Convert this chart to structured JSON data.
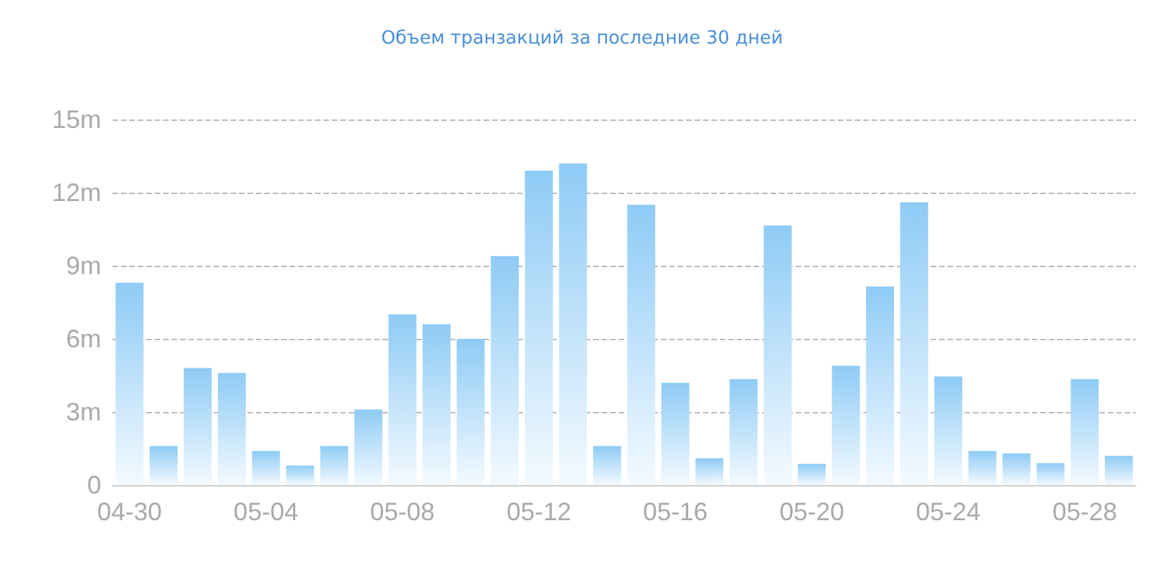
{
  "chart_data": {
    "type": "bar",
    "title": "Объем транзакций за последние 30 дней",
    "categories": [
      "04-30",
      null,
      null,
      null,
      "05-04",
      null,
      null,
      null,
      "05-08",
      null,
      null,
      null,
      "05-12",
      null,
      null,
      null,
      "05-16",
      null,
      null,
      null,
      "05-20",
      null,
      null,
      null,
      "05-24",
      null,
      null,
      null,
      "05-28",
      null
    ],
    "values": [
      8.3,
      1.6,
      4.8,
      4.6,
      1.4,
      0.8,
      1.6,
      3.1,
      7.0,
      6.6,
      6.0,
      9.4,
      12.9,
      13.2,
      1.6,
      11.5,
      4.2,
      1.1,
      4.35,
      10.65,
      0.87,
      4.9,
      8.15,
      11.6,
      4.46,
      1.4,
      1.3,
      0.9,
      4.35,
      1.2
    ],
    "color": "#8ecbf5",
    "ylim": [
      0,
      15
    ],
    "yticks": [
      {
        "value": 0,
        "label": "0"
      },
      {
        "value": 3,
        "label": "3m"
      },
      {
        "value": 6,
        "label": "6m"
      },
      {
        "value": 9,
        "label": "9m"
      },
      {
        "value": 12,
        "label": "12m"
      },
      {
        "value": 15,
        "label": "15m"
      }
    ],
    "grid": "y"
  }
}
